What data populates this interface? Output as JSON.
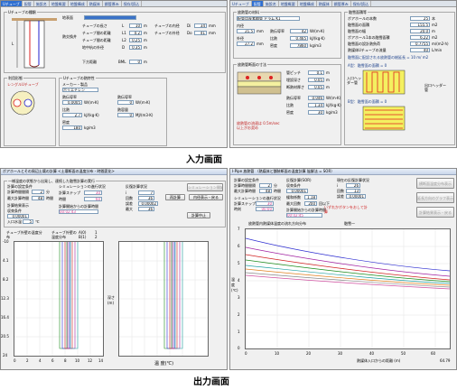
{
  "captions": {
    "input": "入力画面",
    "output": "出力画面"
  },
  "win_tl": {
    "tabs": [
      "Uチューブ",
      "配管",
      "施設名",
      "地盤概要",
      "地盤構成",
      "熱媒体",
      "鋼管厚み",
      "保存/読込"
    ],
    "group_tube_type": "Uチューブの種類",
    "group_use_form": "利用形態",
    "group_u_tube_heat": "Uチューブの熱特性",
    "use_form_label": "レングルUチューブ",
    "depth_label": "地表面",
    "geo_label": "熱交換井",
    "params": [
      {
        "label": "チューブの長さ",
        "sym": "L",
        "value": "10",
        "unit": "m"
      },
      {
        "label": "チューブ間の距離",
        "sym": "L1",
        "value": "0.2",
        "unit": "m"
      },
      {
        "label": "チューブ間の距離",
        "sym": "L2",
        "value": "0.25",
        "unit": "m"
      },
      {
        "label": "地中杭の外径",
        "sym": "D",
        "value": "0.35",
        "unit": "m"
      },
      {
        "label": "チューブの内径",
        "sym": "Di",
        "value": "34",
        "unit": "mm"
      },
      {
        "label": "チューブの外径",
        "sym": "Do",
        "value": "41",
        "unit": "mm"
      },
      {
        "label": "下方距離",
        "sym": "BML",
        "value": "0",
        "unit": "m"
      }
    ],
    "maker_label": "メーカー・製品",
    "maker_value": "ポリエチレン",
    "heat_fields": [
      {
        "label": "熱伝導率",
        "value": "0.0005",
        "unit": "W/(m·K)"
      },
      {
        "label": "比熱",
        "value": "2.7",
        "unit": "kJ/(kg·K)"
      },
      {
        "label": "密度",
        "value": "180",
        "unit": "kg/m3"
      }
    ],
    "pipe_heat_fields": [
      {
        "label": "熱伝導率",
        "value": "0",
        "unit": "W/(m·K)"
      },
      {
        "label": "熱容量",
        "value": "0",
        "unit": "MJ/(m3·K)"
      }
    ]
  },
  "win_tr": {
    "tabs": [
      "Uチューブ",
      "配管",
      "施設名",
      "地盤概要",
      "地盤構成",
      "熱媒体",
      "鋼管厚み",
      "保存/読込"
    ],
    "group_pipe_material": "放熱管の材料",
    "pipe_material_value": "配管用炭素鋼管 ドラム K1",
    "pipe_fields": [
      {
        "label": "内径",
        "value": "21.5",
        "unit": "mm"
      },
      {
        "label": "外径",
        "value": "27.2",
        "unit": "mm"
      },
      {
        "label": "熱伝導率",
        "value": "42",
        "unit": "W/(m·K)"
      },
      {
        "label": "比熱",
        "value": "0.465",
        "unit": "kJ/(kg·K)"
      },
      {
        "label": "密度",
        "value": "7860",
        "unit": "kg/m3"
      }
    ],
    "group_pipe_dim": "放熱管断面の寸法",
    "pipe_dim_fields": [
      {
        "label": "管ピッチ",
        "value": "0.1",
        "unit": "m"
      },
      {
        "label": "埋設深さ",
        "value": "0.05",
        "unit": "m"
      },
      {
        "label": "断熱材厚さ",
        "value": "0.05",
        "unit": "m"
      },
      {
        "label": "熱伝導率",
        "value": "0.046",
        "unit": "W/(m·K)"
      },
      {
        "label": "比熱",
        "value": "1.34",
        "unit": "kJ/(kg·K)"
      },
      {
        "label": "密度",
        "value": "30",
        "unit": "kg/m3"
      }
    ],
    "group_area": "融雪面積等",
    "area_fields": [
      {
        "label": "ボアホールの本数",
        "value": "25",
        "unit": "本"
      },
      {
        "label": "融雪面の面積",
        "value": "155.5",
        "unit": "m2"
      },
      {
        "label": "融雪面の幅",
        "value": "20.0",
        "unit": "m"
      },
      {
        "label": "ポアホール1本の融雪面積",
        "value": "6.22",
        "unit": "m2"
      },
      {
        "label": "融雪面の設計熱負荷",
        "value": "0.7755",
        "unit": "m/(m2·h)"
      },
      {
        "label": "熱媒体Uチューブの流量",
        "value": "40",
        "unit": "L/min"
      }
    ],
    "layout_label": "融雪面に配設される放熱管の総延長 = 10 m/ m2",
    "pattern_a": "A型：融雪面の面積 = 0",
    "pattern_b": "B型：融雪面の面積 = 0",
    "header_in": "入口ヘッダー管",
    "header_out": "出口ヘッダー管",
    "note_text": "放熱管の流速は 0.5m/sec 以上がお奨め"
  },
  "win_bl": {
    "title": "ボアホールとその周辺土壌の計算  <土壌断面の温度分布 - 時間変化>",
    "group_title": "一様温度の状態から出発し、連続した融雪計算の実行",
    "calc_cond": "計算の設定条件",
    "interval_label": "計算時間間隔",
    "interval_value": "2",
    "interval_unit": "分",
    "max_time_label": "最大計算時間",
    "max_time_value": "48",
    "max_time_unit": "時間",
    "result_label": "計算結果表示",
    "iter_label": "収束条件",
    "iter_value": "0.00001",
    "temp_label": "入口水温",
    "temp_value": "5",
    "temp_unit": "℃",
    "sim_label": "シミュレーションの進行状況",
    "step_label": "計算ステップ",
    "step_value": "30",
    "elapsed_label": "時間",
    "elapsed_value": "60",
    "state_label": "計算開始からの計算時間",
    "state_value": "00:02:43",
    "result_sit": "反復計算状況",
    "res_i_label": "i",
    "res_i_value": "7",
    "res_count_label": "回数",
    "res_count_value": "36",
    "res_err_label": "誤差",
    "res_err_value": "0.00002",
    "res_max_label": "最大",
    "res_max_value": "36",
    "btn_sim_start": "シミュレーション開始",
    "btn_restart": "再計算",
    "btn_inner": "内径表示・戻る",
    "btn_stop": "計算中止",
    "left_plot_title": "チューブ外壁の温度分布",
    "right_plot_title": "チューブ外壁の温度分布",
    "legend": [
      "A(0)",
      "1",
      "B(1)",
      "2"
    ],
    "y_ticks": [
      "-10",
      "4.1",
      "8.2",
      "12.3",
      "16.4",
      "20.5",
      "24"
    ],
    "x_ticks": [
      "0",
      "2",
      "4",
      "6",
      "8",
      "10",
      "12",
      "14"
    ],
    "x_label": "温 度(℃)",
    "y_label": "深さ(m)"
  },
  "win_br": {
    "title": "I-Pipe 放熱管 （熱媒体と舗装断面の温度計算 陰解法 = SOR）",
    "calc_cond": "計算の設定条件",
    "interval_label": "計算時間間隔",
    "interval_value": "2",
    "interval_unit": "分",
    "max_time_label": "最大計算時間",
    "max_time_value": "48",
    "max_time_unit": "時間",
    "iter_block": "反復計算(SOR)",
    "iter_label": "収束条件",
    "iter_value": "0.00001",
    "relax_label": "緩和係数",
    "relax_value": "1.18",
    "max_iter_label": "最大回数",
    "max_iter_value": "200",
    "max_iter_unit": "回以下",
    "cur_block": "現在の反復計算状況",
    "cur_i_label": "i",
    "cur_i_value": "26",
    "cur_count_label": "回数",
    "cur_count_value": "13",
    "cur_err_label": "誤差",
    "cur_err_value": "0.00001",
    "sim_label": "シミュレーションの進行状況",
    "step_label": "計算ステップ",
    "step_value": "30",
    "time_label": "時刻",
    "time_value": "00:00",
    "elapsed_label": "計算開始からの計算時間",
    "elapsed_value": "00:02:45",
    "warn_text": "いずれかボタンをおして計算",
    "btn_display": "横断面温度分布表示",
    "btn_graph": "延長方向のグラフ表示",
    "btn_back": "計算結果表示・戻る",
    "plot_title": "放熱管内熱媒体温度の流れ方向分布",
    "plot_sub": "融雪一",
    "y_ticks": [
      "7",
      "6",
      "5",
      "4",
      "3",
      "2",
      "1",
      "0"
    ],
    "x_ticks": [
      "0",
      "10",
      "20",
      "30",
      "40",
      "50",
      "60"
    ],
    "x_label": "熱媒体入口からの距離 (m)",
    "x_max": "64.79",
    "y_label": "温度(℃)"
  }
}
